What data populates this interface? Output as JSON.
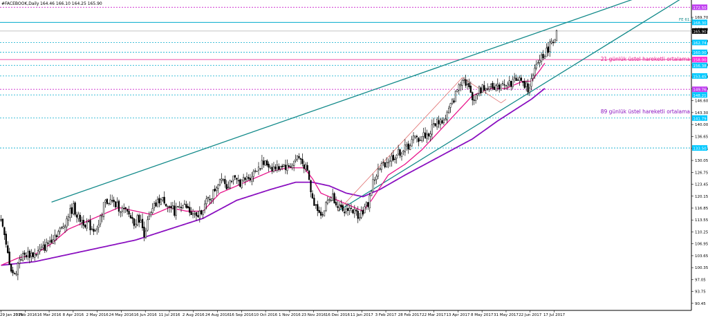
{
  "header": {
    "symbol": "#FACEBOOK,Daily",
    "ohlc": "164.46 166.10 164.25 165.90"
  },
  "colors": {
    "bull": "#000000",
    "bear": "#000000",
    "ema21": "#e8168c",
    "ema89": "#8a10c0",
    "trend": "#138a8a",
    "fib_line": "#00aacc",
    "fib_label_bg": "#00c8ff",
    "pink_label_bg": "#ff2ad4",
    "purple_label_bg": "#c040f0",
    "price_label_bg": "#000000",
    "zigzag": "#e07070",
    "purple_dotted": "#cc22cc"
  },
  "annotations": {
    "ema21_label": "21 günlük üstel hareketli ortalama",
    "ema89_label": "89 günlük üstel hareketli ortalama",
    "fe_label": "FE 61.8"
  },
  "chart_data": {
    "type": "candlestick",
    "title": "#FACEBOOK,Daily",
    "x_axis_labels": [
      "29 Jan 2016",
      "23 Feb 2016",
      "16 Mar 2016",
      "8 Apr 2016",
      "2 May 2016",
      "24 May 2016",
      "16 Jun 2016",
      "11 Jul 2016",
      "2 Aug 2016",
      "24 Aug 2016",
      "16 Sep 2016",
      "10 Oct 2016",
      "1 Nov 2016",
      "23 Nov 2016",
      "16 Dec 2016",
      "11 Jan 2017",
      "3 Feb 2017",
      "28 Feb 2017",
      "22 Mar 2017",
      "13 Apr 2017",
      "8 May 2017",
      "31 May 2017",
      "22 Jun 2017",
      "17 Jul 2017"
    ],
    "y_axis_ticks": [
      "90.45",
      "93.75",
      "97.05",
      "100.35",
      "103.65",
      "106.95",
      "110.25",
      "113.55",
      "116.85",
      "120.15",
      "123.45",
      "126.75",
      "130.05",
      "133.35",
      "136.65",
      "140.00",
      "143.30",
      "146.60",
      "149.90",
      "153.20",
      "156.50",
      "159.80",
      "163.10",
      "166.40",
      "169.70"
    ],
    "y_range": [
      88.5,
      174.5
    ],
    "price_labels": [
      {
        "value": 172.5,
        "text": "172.50",
        "kind": "purple",
        "dotted": true
      },
      {
        "value": 168.3,
        "text": "168.30",
        "kind": "fib",
        "dotted": false
      },
      {
        "value": 165.9,
        "text": "165.90",
        "kind": "price",
        "dotted": false
      },
      {
        "value": 162.74,
        "text": "162.74",
        "kind": "fib",
        "dotted": true
      },
      {
        "value": 160.0,
        "text": "160.00",
        "kind": "fib",
        "dotted": true
      },
      {
        "value": 158.0,
        "text": "158.00",
        "kind": "pink",
        "dotted": false
      },
      {
        "value": 156.38,
        "text": "156.38",
        "kind": "fib",
        "dotted": true
      },
      {
        "value": 153.45,
        "text": "153.45",
        "kind": "fib",
        "dotted": true
      },
      {
        "value": 149.76,
        "text": "149.76",
        "kind": "purple",
        "dotted": true
      },
      {
        "value": 148.21,
        "text": "148.21",
        "kind": "fib",
        "dotted": true
      },
      {
        "value": 141.79,
        "text": "141.79",
        "kind": "fib",
        "dotted": true
      },
      {
        "value": 133.5,
        "text": "133.50",
        "kind": "fib",
        "dotted": true
      }
    ],
    "price_path": [
      [
        0,
        114
      ],
      [
        3,
        106
      ],
      [
        6,
        100
      ],
      [
        8,
        98
      ],
      [
        11,
        103
      ],
      [
        15,
        104
      ],
      [
        20,
        104
      ],
      [
        26,
        106
      ],
      [
        31,
        109
      ],
      [
        36,
        111
      ],
      [
        40,
        115
      ],
      [
        43,
        117
      ],
      [
        46,
        114
      ],
      [
        49,
        113
      ],
      [
        52,
        112
      ],
      [
        55,
        111
      ],
      [
        58,
        112
      ],
      [
        61,
        118
      ],
      [
        64,
        119
      ],
      [
        67,
        118
      ],
      [
        70,
        117
      ],
      [
        73,
        116
      ],
      [
        76,
        115
      ],
      [
        79,
        113
      ],
      [
        82,
        114
      ],
      [
        85,
        110
      ],
      [
        88,
        114
      ],
      [
        91,
        117
      ],
      [
        94,
        119
      ],
      [
        97,
        119
      ],
      [
        100,
        117
      ],
      [
        103,
        116
      ],
      [
        106,
        118
      ],
      [
        110,
        117
      ],
      [
        113,
        115
      ],
      [
        116,
        114
      ],
      [
        120,
        117
      ],
      [
        123,
        119
      ],
      [
        126,
        121
      ],
      [
        129,
        124
      ],
      [
        131,
        126
      ],
      [
        134,
        123
      ],
      [
        137,
        125
      ],
      [
        140,
        124
      ],
      [
        143,
        124
      ],
      [
        146,
        125
      ],
      [
        149,
        126
      ],
      [
        152,
        128
      ],
      [
        155,
        129
      ],
      [
        158,
        129
      ],
      [
        161,
        128
      ],
      [
        164,
        128
      ],
      [
        167,
        129
      ],
      [
        170,
        128
      ],
      [
        173,
        129
      ],
      [
        176,
        131
      ],
      [
        179,
        130
      ],
      [
        182,
        127
      ],
      [
        185,
        119
      ],
      [
        188,
        117
      ],
      [
        191,
        115
      ],
      [
        194,
        119
      ],
      [
        197,
        120
      ],
      [
        200,
        118
      ],
      [
        203,
        115
      ],
      [
        206,
        117
      ],
      [
        209,
        116
      ],
      [
        212,
        115
      ],
      [
        215,
        116
      ],
      [
        218,
        118
      ],
      [
        221,
        124
      ],
      [
        224,
        127
      ],
      [
        227,
        129
      ],
      [
        230,
        130
      ],
      [
        233,
        131
      ],
      [
        236,
        132
      ],
      [
        239,
        133
      ],
      [
        242,
        134
      ],
      [
        245,
        136
      ],
      [
        248,
        136
      ],
      [
        251,
        137
      ],
      [
        254,
        137
      ],
      [
        257,
        140
      ],
      [
        260,
        141
      ],
      [
        263,
        141
      ],
      [
        266,
        144
      ],
      [
        269,
        147
      ],
      [
        272,
        151
      ],
      [
        274,
        153
      ],
      [
        277,
        151
      ],
      [
        280,
        147
      ],
      [
        283,
        149
      ],
      [
        286,
        150
      ],
      [
        289,
        151
      ],
      [
        292,
        151
      ],
      [
        295,
        150
      ],
      [
        298,
        152
      ],
      [
        301,
        151
      ],
      [
        304,
        152
      ],
      [
        307,
        153
      ],
      [
        310,
        151
      ],
      [
        313,
        150
      ],
      [
        316,
        153
      ],
      [
        318,
        156
      ],
      [
        321,
        159
      ],
      [
        324,
        160
      ],
      [
        327,
        163
      ],
      [
        330,
        165
      ]
    ],
    "ema21_path": [
      [
        0,
        101
      ],
      [
        10,
        103
      ],
      [
        20,
        104
      ],
      [
        30,
        107
      ],
      [
        40,
        111
      ],
      [
        50,
        113
      ],
      [
        60,
        115
      ],
      [
        70,
        117
      ],
      [
        80,
        116
      ],
      [
        90,
        115
      ],
      [
        100,
        117
      ],
      [
        110,
        116
      ],
      [
        120,
        116
      ],
      [
        130,
        121
      ],
      [
        140,
        123
      ],
      [
        150,
        125
      ],
      [
        160,
        127
      ],
      [
        170,
        128
      ],
      [
        180,
        128
      ],
      [
        185,
        125
      ],
      [
        190,
        121
      ],
      [
        200,
        119
      ],
      [
        210,
        117
      ],
      [
        215,
        116
      ],
      [
        220,
        119
      ],
      [
        230,
        126
      ],
      [
        240,
        129
      ],
      [
        250,
        133
      ],
      [
        260,
        138
      ],
      [
        270,
        143
      ],
      [
        280,
        148
      ],
      [
        290,
        150
      ],
      [
        300,
        150
      ],
      [
        310,
        152
      ],
      [
        315,
        152
      ],
      [
        320,
        155
      ],
      [
        323,
        157
      ]
    ],
    "ema89_path": [
      [
        0,
        101
      ],
      [
        20,
        102
      ],
      [
        40,
        104
      ],
      [
        60,
        106
      ],
      [
        80,
        108
      ],
      [
        100,
        111
      ],
      [
        120,
        114
      ],
      [
        140,
        119
      ],
      [
        160,
        122
      ],
      [
        175,
        124
      ],
      [
        185,
        124
      ],
      [
        195,
        123
      ],
      [
        205,
        121
      ],
      [
        215,
        120
      ],
      [
        225,
        122
      ],
      [
        240,
        126
      ],
      [
        260,
        131
      ],
      [
        280,
        136
      ],
      [
        295,
        141
      ],
      [
        305,
        144
      ],
      [
        315,
        147
      ],
      [
        323,
        150
      ]
    ],
    "trendlines": [
      {
        "from": [
          30,
          118.5
        ],
        "to": [
          408,
          180
        ]
      },
      {
        "from": [
          200,
          116
        ],
        "to": [
          408,
          176
        ]
      }
    ],
    "zigzag": [
      [
        200,
        116
      ],
      [
        274,
        153
      ],
      [
        297,
        146
      ],
      [
        300,
        147
      ]
    ]
  }
}
